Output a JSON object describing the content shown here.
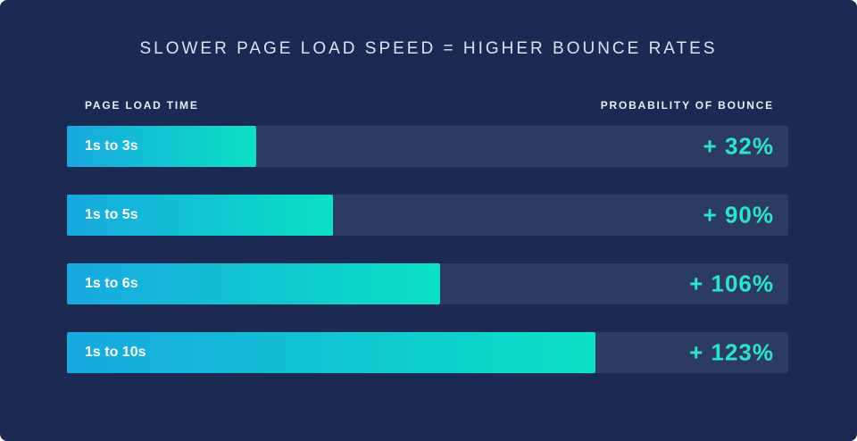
{
  "colors": {
    "page_background": "#ffffff",
    "panel_background": "#1b2a52",
    "track_background": "#2b3b61",
    "bar_gradient_start": "#18a8e0",
    "bar_gradient_end": "#0be0c5",
    "value_text": "#2ce4cb",
    "title_text": "#dde3ed",
    "header_text": "#e9edf5",
    "bar_label_text": "#ffffff"
  },
  "chart_data": {
    "type": "bar",
    "orientation": "horizontal",
    "title": "SLOWER PAGE LOAD SPEED = HIGHER BOUNCE RATES",
    "left_header": "PAGE LOAD TIME",
    "right_header": "PROBABILITY OF BOUNCE",
    "categories": [
      "1s to 3s",
      "1s to 5s",
      "1s to 6s",
      "1s to 10s"
    ],
    "values": [
      32,
      90,
      106,
      123
    ],
    "value_labels": [
      "+ 32%",
      "+ 90%",
      "+ 106%",
      "+ 123%"
    ],
    "bar_width_pct": [
      26.2,
      36.9,
      51.7,
      73.3
    ],
    "legend": "none",
    "grid": "off"
  }
}
